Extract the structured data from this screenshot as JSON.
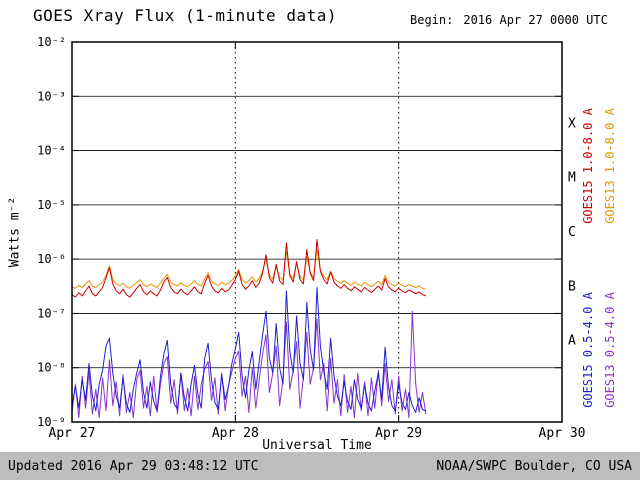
{
  "header": {
    "title": "GOES Xray Flux (1-minute data)",
    "begin_label": "Begin:",
    "begin_value": "2016 Apr 27 0000 UTC"
  },
  "axes": {
    "x_label": "Universal Time",
    "y_label": "Watts m⁻²"
  },
  "footer": {
    "updated": "Updated 2016 Apr 29 03:48:12 UTC",
    "source": "NOAA/SWPC Boulder, CO USA"
  },
  "colors": {
    "frame": "#000000",
    "plot_background": "#ffffff",
    "footer_band": "#bdbdbd",
    "goes15_long": "#cc0000",
    "goes13_long": "#e89500",
    "goes15_short": "#2020d0",
    "goes13_short": "#8833cc"
  },
  "chart_data": {
    "type": "line",
    "title": "GOES Xray Flux (1-minute data)",
    "xlabel": "Universal Time",
    "ylabel": "Watts m⁻²",
    "y_scale": "log",
    "ylim": [
      1e-09,
      0.01
    ],
    "x_range_utc": [
      "2016 Apr 27 0000 UTC",
      "2016 Apr 30 0000 UTC"
    ],
    "x_span_hours": 72,
    "x_ticks": [
      {
        "label": "Apr 27",
        "hours": 0
      },
      {
        "label": "Apr 28",
        "hours": 24
      },
      {
        "label": "Apr 29",
        "hours": 48
      },
      {
        "label": "Apr 30",
        "hours": 72
      }
    ],
    "y_ticks": [
      {
        "label": "10⁻²",
        "exponent": -2
      },
      {
        "label": "10⁻³",
        "exponent": -3
      },
      {
        "label": "10⁻⁴",
        "exponent": -4
      },
      {
        "label": "10⁻⁵",
        "exponent": -5
      },
      {
        "label": "10⁻⁶",
        "exponent": -6
      },
      {
        "label": "10⁻⁷",
        "exponent": -7
      },
      {
        "label": "10⁻⁸",
        "exponent": -8
      },
      {
        "label": "10⁻⁹",
        "exponent": -9
      }
    ],
    "flare_classes": [
      {
        "label": "X",
        "exponent": -3.5
      },
      {
        "label": "M",
        "exponent": -4.5
      },
      {
        "label": "C",
        "exponent": -5.5
      },
      {
        "label": "B",
        "exponent": -6.5
      },
      {
        "label": "A",
        "exponent": -7.5
      }
    ],
    "grid": {
      "h_line_exponents": [
        -3,
        -4,
        -5,
        -6,
        -7,
        -8
      ],
      "v_line_hours": [
        24,
        48
      ]
    },
    "legend_position": "right-rotated",
    "sample_start_hours": 0,
    "sample_step_hours": 0.5,
    "series": [
      {
        "name": "GOES15 1.0-8.0 A",
        "color": "#cc0000",
        "values": [
          2.2e-07,
          2e-07,
          2.4e-07,
          2.1e-07,
          2.6e-07,
          3.2e-07,
          2.3e-07,
          2.1e-07,
          2.5e-07,
          3e-07,
          4.5e-07,
          7e-07,
          3.5e-07,
          2.6e-07,
          2.3e-07,
          2.8e-07,
          2.2e-07,
          2e-07,
          2.4e-07,
          2.9e-07,
          3.4e-07,
          2.5e-07,
          2.2e-07,
          2.6e-07,
          2.3e-07,
          2.1e-07,
          2.7e-07,
          3.8e-07,
          4.6e-07,
          3e-07,
          2.5e-07,
          2.3e-07,
          2.8e-07,
          2.4e-07,
          2.2e-07,
          2.6e-07,
          3.1e-07,
          2.5e-07,
          2.3e-07,
          3.6e-07,
          5e-07,
          3.2e-07,
          2.6e-07,
          2.4e-07,
          2.9e-07,
          2.5e-07,
          2.7e-07,
          3.3e-07,
          4.2e-07,
          6e-07,
          3.4e-07,
          2.8e-07,
          3.2e-07,
          4e-07,
          3e-07,
          3.6e-07,
          5.5e-07,
          1.2e-06,
          4.5e-07,
          3.6e-07,
          8e-07,
          4e-07,
          3.4e-07,
          2e-06,
          5e-07,
          3.8e-07,
          9e-07,
          4.2e-07,
          3.5e-07,
          1.5e-06,
          5.5e-07,
          4e-07,
          2.3e-06,
          6e-07,
          4.2e-07,
          3.5e-07,
          5.8e-07,
          3.8e-07,
          3.2e-07,
          2.9e-07,
          3.4e-07,
          2.9e-07,
          2.6e-07,
          3.1e-07,
          2.8e-07,
          2.5e-07,
          3e-07,
          2.7e-07,
          2.4e-07,
          2.8e-07,
          3.2e-07,
          2.7e-07,
          4.4e-07,
          3.1e-07,
          2.7e-07,
          2.5e-07,
          2.9e-07,
          2.6e-07,
          2.4e-07,
          2.7e-07,
          2.5e-07,
          2.3e-07,
          2.5e-07,
          2.2e-07,
          2.1e-07
        ]
      },
      {
        "name": "GOES13 1.0-8.0 A",
        "color": "#e89500",
        "values": [
          3.1e-07,
          2.9e-07,
          3.3e-07,
          3e-07,
          3.5e-07,
          4e-07,
          3.2e-07,
          3e-07,
          3.4e-07,
          3.8e-07,
          5e-07,
          7.5e-07,
          4.2e-07,
          3.5e-07,
          3.2e-07,
          3.6e-07,
          3.1e-07,
          2.9e-07,
          3.3e-07,
          3.7e-07,
          4.2e-07,
          3.4e-07,
          3.1e-07,
          3.5e-07,
          3.2e-07,
          3e-07,
          3.6e-07,
          4.4e-07,
          5.2e-07,
          3.8e-07,
          3.4e-07,
          3.2e-07,
          3.7e-07,
          3.3e-07,
          3.1e-07,
          3.5e-07,
          4e-07,
          3.4e-07,
          3.2e-07,
          4.3e-07,
          5.6e-07,
          4e-07,
          3.5e-07,
          3.3e-07,
          3.8e-07,
          3.4e-07,
          3.6e-07,
          4.1e-07,
          4.9e-07,
          6.5e-07,
          4.2e-07,
          3.6e-07,
          4e-07,
          4.7e-07,
          3.8e-07,
          4.4e-07,
          6e-07,
          1e-06,
          5e-07,
          4.3e-07,
          7.5e-07,
          4.6e-07,
          4.1e-07,
          1.4e-06,
          5.4e-07,
          4.4e-07,
          8.5e-07,
          4.8e-07,
          4.2e-07,
          1.1e-06,
          5.8e-07,
          4.6e-07,
          1.5e-06,
          6.2e-07,
          4.8e-07,
          4.2e-07,
          6e-07,
          4.4e-07,
          3.9e-07,
          3.6e-07,
          4e-07,
          3.6e-07,
          3.3e-07,
          3.8e-07,
          3.5e-07,
          3.2e-07,
          3.7e-07,
          3.4e-07,
          3.1e-07,
          3.5e-07,
          3.9e-07,
          3.4e-07,
          5e-07,
          3.8e-07,
          3.4e-07,
          3.2e-07,
          3.6e-07,
          3.3e-07,
          3.1e-07,
          3.4e-07,
          3.2e-07,
          3e-07,
          3.2e-07,
          2.9e-07,
          2.8e-07
        ]
      },
      {
        "name": "GOES15 0.5-4.0 A",
        "color": "#2020d0",
        "values": [
          2e-09,
          4.5e-09,
          1.8e-09,
          6e-09,
          2.5e-09,
          1.2e-08,
          3e-09,
          1.6e-09,
          5e-09,
          9e-09,
          2.5e-08,
          3.5e-08,
          8e-09,
          3e-09,
          1.8e-09,
          6.5e-09,
          2.2e-09,
          1.5e-09,
          4e-09,
          8e-09,
          1.4e-08,
          3.5e-09,
          1.8e-09,
          5.5e-09,
          2.4e-09,
          1.6e-09,
          7e-09,
          1.8e-08,
          3.2e-08,
          5e-09,
          2.2e-09,
          1.7e-09,
          8e-09,
          2.8e-09,
          1.6e-09,
          5e-09,
          1.1e-08,
          3.2e-09,
          1.8e-09,
          1.5e-08,
          2.8e-08,
          6e-09,
          2.3e-09,
          1.7e-09,
          7.5e-09,
          2.6e-09,
          4.5e-09,
          1.2e-08,
          2.2e-08,
          4.5e-08,
          7e-09,
          2.8e-09,
          9e-09,
          2e-08,
          4e-09,
          1.3e-08,
          4e-08,
          1.1e-07,
          1.5e-08,
          8e-09,
          6.5e-08,
          1e-08,
          5e-09,
          2.6e-07,
          2e-08,
          8e-09,
          9e-08,
          1.2e-08,
          6e-09,
          1.6e-07,
          2.2e-08,
          9e-09,
          3e-07,
          2.5e-08,
          8.5e-09,
          4e-09,
          3.5e-08,
          7e-09,
          3e-09,
          2e-09,
          5.5e-09,
          2.4e-09,
          1.7e-09,
          6e-09,
          2.6e-09,
          1.8e-09,
          4.8e-09,
          2.2e-09,
          1.6e-09,
          3.8e-09,
          8e-09,
          2.6e-09,
          2.4e-08,
          4.5e-09,
          2e-09,
          1.6e-09,
          5e-09,
          2.2e-09,
          1.7e-09,
          3.5e-09,
          2e-09,
          1.5e-09,
          2.8e-09,
          1.7e-09,
          1.6e-09
        ]
      },
      {
        "name": "GOES13 0.5-4.0 A",
        "color": "#8833cc",
        "values": [
          1.5e-09,
          5e-09,
          1.2e-09,
          7e-09,
          1.8e-09,
          8.5e-09,
          1.4e-09,
          4e-09,
          1.2e-09,
          6.5e-09,
          1.6e-09,
          1.4e-08,
          2e-09,
          5.5e-09,
          1.3e-09,
          7.5e-09,
          1.5e-09,
          3.5e-09,
          1.2e-09,
          6e-09,
          9e-09,
          1.8e-09,
          4.5e-09,
          1.3e-09,
          7e-09,
          1.5e-09,
          5e-09,
          1.2e-08,
          1.6e-08,
          2.2e-09,
          6e-09,
          1.4e-09,
          8e-09,
          1.6e-09,
          4.2e-09,
          1.3e-09,
          7e-09,
          1.7e-09,
          5e-09,
          9.5e-09,
          1.3e-08,
          2.5e-09,
          6.5e-09,
          1.4e-09,
          8e-09,
          1.6e-09,
          4.8e-09,
          8.5e-09,
          1.5e-08,
          2e-08,
          3e-09,
          7e-09,
          1.5e-09,
          1e-08,
          1.8e-09,
          6e-09,
          1.8e-08,
          4e-08,
          3.5e-09,
          8e-09,
          2.5e-08,
          2e-09,
          6e-09,
          7e-08,
          4e-09,
          9e-09,
          3e-08,
          1.8e-09,
          6.5e-09,
          4.5e-08,
          5e-09,
          1e-08,
          8e-08,
          6e-09,
          1.2e-08,
          1.6e-09,
          1.5e-08,
          2.2e-09,
          6e-09,
          1.3e-09,
          7.5e-09,
          1.5e-09,
          4.5e-09,
          1.2e-09,
          8e-09,
          1.6e-09,
          5.5e-09,
          1.3e-09,
          6.5e-09,
          1.8e-09,
          9e-09,
          2e-09,
          1.2e-08,
          2.4e-09,
          6e-09,
          1.4e-09,
          7e-09,
          1.6e-09,
          4e-09,
          1.2e-09,
          1.1e-07,
          5e-09,
          1.5e-09,
          3.5e-09,
          1.4e-09
        ]
      }
    ]
  }
}
